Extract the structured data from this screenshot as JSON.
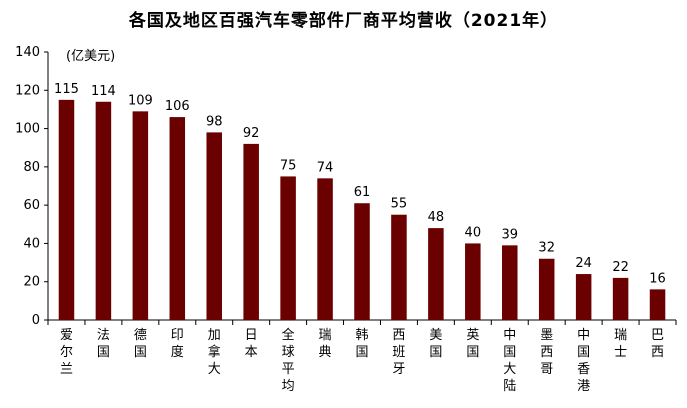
{
  "chart_data": {
    "type": "bar",
    "title": "各国及地区百强汽车零部件厂商平均营收（2021年）",
    "unit_label": "(亿美元)",
    "categories": [
      "爱尔兰",
      "法国",
      "德国",
      "印度",
      "加拿大",
      "日本",
      "全球平均",
      "瑞典",
      "韩国",
      "西班牙",
      "美国",
      "英国",
      "中国大陆",
      "墨西哥",
      "中国香港",
      "瑞士",
      "巴西"
    ],
    "values": [
      115,
      114,
      109,
      106,
      98,
      92,
      75,
      74,
      61,
      55,
      48,
      40,
      39,
      32,
      24,
      22,
      16
    ],
    "ylim": [
      0,
      140
    ],
    "yticks": [
      "0",
      "20",
      "40",
      "60",
      "80",
      "100",
      "120",
      "140"
    ],
    "xlabel": "",
    "ylabel": "",
    "grid": false,
    "legend": "none",
    "bar_color": "#6b0000"
  }
}
